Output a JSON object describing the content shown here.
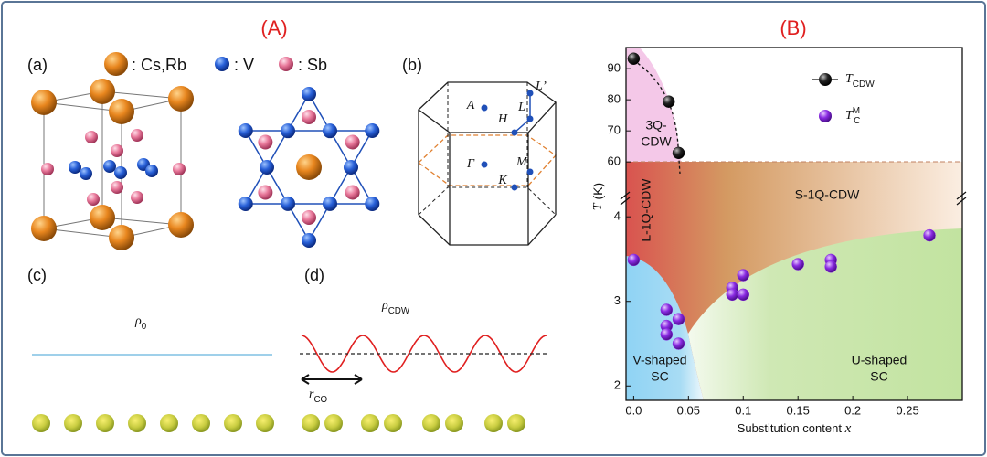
{
  "panel_a": {
    "title": "(A)",
    "label_a": "(a)",
    "legend": [
      ": Cs,Rb",
      ": V",
      ": Sb"
    ],
    "label_b": "(b)",
    "k_points": [
      "A",
      "H",
      "L",
      "L’",
      "Γ",
      "M",
      "K"
    ],
    "label_c": "(c)",
    "rho0": {
      "symbol": "ρ",
      "sub": "0"
    },
    "label_d": "(d)",
    "rho_cdw": {
      "symbol": "ρ",
      "sub": "CDW"
    },
    "r_co": {
      "symbol": "r",
      "sub": "CO"
    }
  },
  "chart_data": {
    "type": "scatter",
    "title": "(B)",
    "xlabel": "Substitution content",
    "xlabel_var": "x",
    "ylabel_var": "T",
    "ylabel_unit": "(K)",
    "xlim": [
      -0.007,
      0.3
    ],
    "xticks": [
      {
        "value": 0,
        "label": "0.0"
      },
      0.05,
      0.1,
      0.15,
      0.2,
      0.25
    ],
    "ylim": [
      53,
      96.8
    ],
    "yticks": [
      60,
      70,
      80,
      90
    ],
    "y2lim": [
      1.83,
      4.24
    ],
    "y2ticks": [
      2,
      3,
      4
    ],
    "annotations": [
      "3Q-",
      "CDW",
      "S-1Q-CDW",
      "L-1Q-CDW",
      "V-shaped",
      "SC",
      "U-shaped",
      "SC"
    ],
    "series": [
      {
        "name": "T",
        "name_sub": "CDW",
        "color": "#111111",
        "axis": "y",
        "x": [
          0,
          0.032,
          0.041
        ],
        "values": [
          93.2,
          79.4,
          62.9
        ]
      },
      {
        "name": "T",
        "name_sub": "C",
        "name_sup": "M",
        "color": "#8a2be2",
        "axis": "y2",
        "x": [
          0,
          0.03,
          0.03,
          0.03,
          0.041,
          0.041,
          0.09,
          0.09,
          0.1,
          0.1,
          0.15,
          0.18,
          0.18,
          0.27
        ],
        "values": [
          3.49,
          2.9,
          2.71,
          2.61,
          2.79,
          2.5,
          3.16,
          3.08,
          3.08,
          3.31,
          3.44,
          3.49,
          3.41,
          3.78
        ]
      }
    ]
  }
}
